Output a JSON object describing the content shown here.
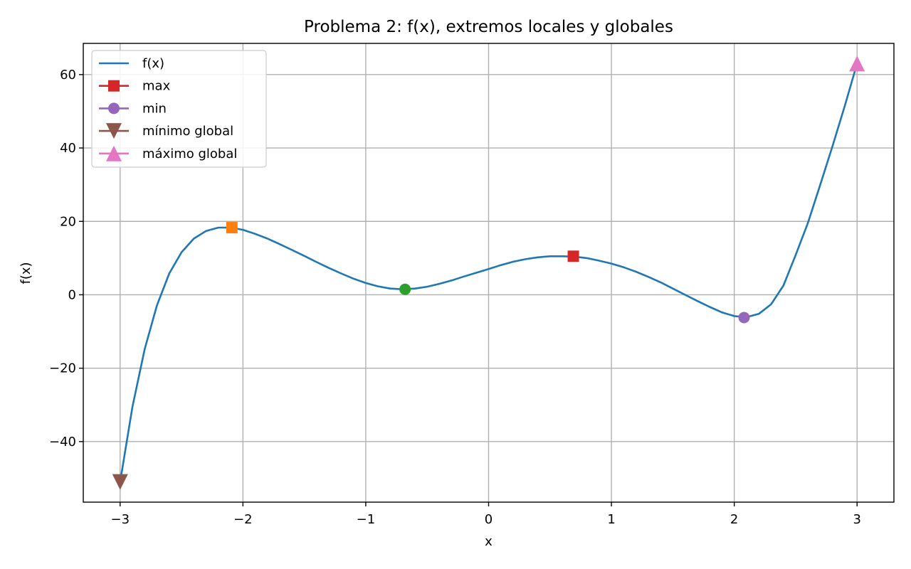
{
  "chart_data": {
    "type": "line",
    "title": "Problema 2: f(x), extremos locales y globales",
    "xlabel": "x",
    "ylabel": "f(x)",
    "xlim": [
      -3.3,
      3.3
    ],
    "ylim": [
      -56.5,
      68.5
    ],
    "grid": true,
    "legend_position": "top-left",
    "x_ticks": [
      {
        "value": -3,
        "label": "−3"
      },
      {
        "value": -2,
        "label": "−2"
      },
      {
        "value": -1,
        "label": "−1"
      },
      {
        "value": 0,
        "label": "0"
      },
      {
        "value": 1,
        "label": "1"
      },
      {
        "value": 2,
        "label": "2"
      },
      {
        "value": 3,
        "label": "3"
      }
    ],
    "y_ticks": [
      {
        "value": -40,
        "label": "−40"
      },
      {
        "value": -20,
        "label": "−20"
      },
      {
        "value": 0,
        "label": "0"
      },
      {
        "value": 20,
        "label": "20"
      },
      {
        "value": 40,
        "label": "40"
      },
      {
        "value": 60,
        "label": "60"
      }
    ],
    "series": [
      {
        "name": "f(x)",
        "kind": "line",
        "color": "#1f77b4",
        "x": [
          -3.0,
          -2.9,
          -2.8,
          -2.7,
          -2.6,
          -2.5,
          -2.4,
          -2.3,
          -2.2,
          -2.1,
          -2.0,
          -1.9,
          -1.8,
          -1.7,
          -1.6,
          -1.5,
          -1.4,
          -1.3,
          -1.2,
          -1.1,
          -1.0,
          -0.9,
          -0.8,
          -0.7,
          -0.6,
          -0.5,
          -0.4,
          -0.3,
          -0.2,
          -0.1,
          0.0,
          0.1,
          0.2,
          0.3,
          0.4,
          0.5,
          0.6,
          0.7,
          0.8,
          0.9,
          1.0,
          1.1,
          1.2,
          1.3,
          1.4,
          1.5,
          1.6,
          1.7,
          1.8,
          1.9,
          2.0,
          2.1,
          2.2,
          2.3,
          2.4,
          2.5,
          2.6,
          2.7,
          2.8,
          2.9,
          3.0
        ],
        "y": [
          -51.0,
          -30.6,
          -14.8,
          -2.9,
          5.8,
          11.6,
          15.3,
          17.4,
          18.3,
          18.3,
          17.7,
          16.6,
          15.3,
          13.8,
          12.2,
          10.6,
          8.9,
          7.3,
          5.8,
          4.4,
          3.2,
          2.3,
          1.7,
          1.5,
          1.7,
          2.2,
          3.0,
          3.9,
          5.0,
          6.0,
          7.0,
          8.1,
          9.0,
          9.7,
          10.2,
          10.5,
          10.5,
          10.4,
          10.0,
          9.3,
          8.5,
          7.5,
          6.3,
          4.9,
          3.4,
          1.7,
          0.0,
          -1.7,
          -3.3,
          -4.8,
          -5.8,
          -6.1,
          -5.2,
          -2.6,
          2.5,
          10.8,
          19.6,
          30.0,
          40.5,
          51.5,
          63.0
        ]
      },
      {
        "name": "max",
        "kind": "marker",
        "marker": "square",
        "color": "#d62728",
        "points": [
          {
            "x": 0.69,
            "y": 10.5
          }
        ],
        "extra_points": [
          {
            "x": -2.09,
            "y": 18.3,
            "color": "#ff7f0e"
          }
        ]
      },
      {
        "name": "min",
        "kind": "marker",
        "marker": "circle",
        "color": "#9467bd",
        "points": [
          {
            "x": 2.08,
            "y": -6.2
          }
        ],
        "extra_points": [
          {
            "x": -0.68,
            "y": 1.5,
            "color": "#2ca02c"
          }
        ]
      },
      {
        "name": "mínimo global",
        "kind": "marker",
        "marker": "triangle-down",
        "color": "#8c564b",
        "points": [
          {
            "x": -3.0,
            "y": -51.0
          }
        ]
      },
      {
        "name": "máximo global",
        "kind": "marker",
        "marker": "triangle-up",
        "color": "#e377c2",
        "points": [
          {
            "x": 3.0,
            "y": 63.0
          }
        ]
      }
    ]
  }
}
